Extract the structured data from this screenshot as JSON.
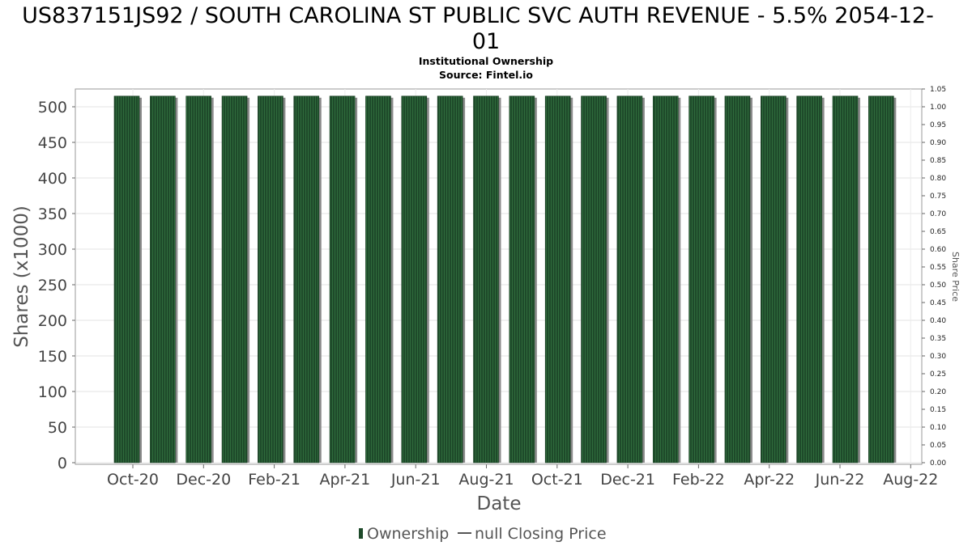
{
  "chart_data": {
    "type": "bar",
    "title": "US837151JS92 / SOUTH CAROLINA ST PUBLIC SVC AUTH REVENUE - 5.5% 2054-12-01",
    "title_lines": [
      "US837151JS92 / SOUTH CAROLINA ST PUBLIC SVC AUTH REVENUE - 5.5% 2054-12-",
      "01"
    ],
    "subtitle": "Institutional Ownership",
    "source": "Source: Fintel.io",
    "xlabel": "Date",
    "ylabel": "Shares (x1000)",
    "y2label": "Share Price",
    "ylim": [
      0,
      525
    ],
    "y2lim": [
      0,
      1.05
    ],
    "yticks": [
      0,
      50,
      100,
      150,
      200,
      250,
      300,
      350,
      400,
      450,
      500
    ],
    "y2ticks": [
      "0.00",
      "0.05",
      "0.10",
      "0.15",
      "0.20",
      "0.25",
      "0.30",
      "0.35",
      "0.40",
      "0.45",
      "0.50",
      "0.55",
      "0.60",
      "0.65",
      "0.70",
      "0.75",
      "0.80",
      "0.85",
      "0.90",
      "0.95",
      "1.00",
      "1.05"
    ],
    "xticks": [
      "Oct-20",
      "Dec-20",
      "Feb-21",
      "Apr-21",
      "Jun-21",
      "Aug-21",
      "Oct-21",
      "Dec-21",
      "Feb-22",
      "Apr-22",
      "Jun-22",
      "Aug-22"
    ],
    "grid": true,
    "series": [
      {
        "name": "Ownership",
        "color": "#1e4a2a",
        "values": [
          515,
          515,
          515,
          515,
          515,
          515,
          515,
          515,
          515,
          515,
          515,
          515,
          515,
          515,
          515,
          515,
          515,
          515,
          515,
          515,
          515,
          515
        ]
      }
    ],
    "legend": {
      "position": "bottom",
      "items": [
        {
          "label": "Ownership",
          "marker": "bar",
          "color": "#1e4a2a"
        },
        {
          "label": "null Closing Price",
          "marker": "line",
          "color": "#555555"
        }
      ]
    }
  }
}
